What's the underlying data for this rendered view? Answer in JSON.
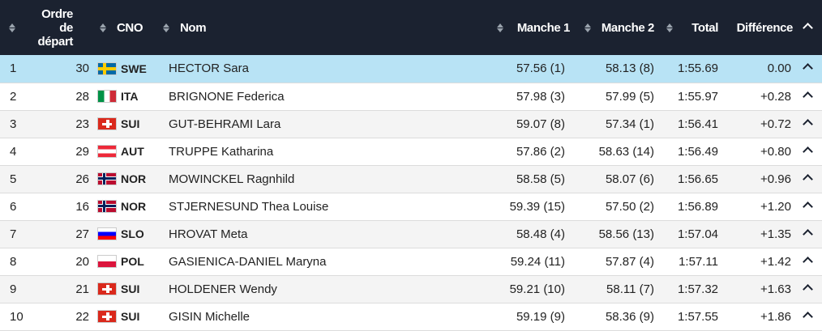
{
  "columns": {
    "ordre_line1": "Ordre",
    "ordre_line2": "de",
    "ordre_line3": "départ",
    "noc": "CNO",
    "name": "Nom",
    "run1": "Manche 1",
    "run2": "Manche 2",
    "total": "Total",
    "diff": "Différence"
  },
  "rows": [
    {
      "rank": "1",
      "bib": "30",
      "noc": "SWE",
      "flag": "sweden-flag-icon",
      "name": "HECTOR Sara",
      "run1": "57.56",
      "run1_rank": "(1)",
      "run2": "58.13",
      "run2_rank": "(8)",
      "total": "1:55.69",
      "diff": "0.00"
    },
    {
      "rank": "2",
      "bib": "28",
      "noc": "ITA",
      "flag": "italy-flag-icon",
      "name": "BRIGNONE Federica",
      "run1": "57.98",
      "run1_rank": "(3)",
      "run2": "57.99",
      "run2_rank": "(5)",
      "total": "1:55.97",
      "diff": "+0.28"
    },
    {
      "rank": "3",
      "bib": "23",
      "noc": "SUI",
      "flag": "switzerland-flag-icon",
      "name": "GUT-BEHRAMI Lara",
      "run1": "59.07",
      "run1_rank": "(8)",
      "run2": "57.34",
      "run2_rank": "(1)",
      "total": "1:56.41",
      "diff": "+0.72"
    },
    {
      "rank": "4",
      "bib": "29",
      "noc": "AUT",
      "flag": "austria-flag-icon",
      "name": "TRUPPE Katharina",
      "run1": "57.86",
      "run1_rank": "(2)",
      "run2": "58.63",
      "run2_rank": "(14)",
      "total": "1:56.49",
      "diff": "+0.80"
    },
    {
      "rank": "5",
      "bib": "26",
      "noc": "NOR",
      "flag": "norway-flag-icon",
      "name": "MOWINCKEL Ragnhild",
      "run1": "58.58",
      "run1_rank": "(5)",
      "run2": "58.07",
      "run2_rank": "(6)",
      "total": "1:56.65",
      "diff": "+0.96"
    },
    {
      "rank": "6",
      "bib": "16",
      "noc": "NOR",
      "flag": "norway-flag-icon",
      "name": "STJERNESUND Thea Louise",
      "run1": "59.39",
      "run1_rank": "(15)",
      "run2": "57.50",
      "run2_rank": "(2)",
      "total": "1:56.89",
      "diff": "+1.20"
    },
    {
      "rank": "7",
      "bib": "27",
      "noc": "SLO",
      "flag": "slovenia-flag-icon",
      "name": "HROVAT Meta",
      "run1": "58.48",
      "run1_rank": "(4)",
      "run2": "58.56",
      "run2_rank": "(13)",
      "total": "1:57.04",
      "diff": "+1.35"
    },
    {
      "rank": "8",
      "bib": "20",
      "noc": "POL",
      "flag": "poland-flag-icon",
      "name": "GASIENICA-DANIEL Maryna",
      "run1": "59.24",
      "run1_rank": "(11)",
      "run2": "57.87",
      "run2_rank": "(4)",
      "total": "1:57.11",
      "diff": "+1.42"
    },
    {
      "rank": "9",
      "bib": "21",
      "noc": "SUI",
      "flag": "switzerland-flag-icon",
      "name": "HOLDENER Wendy",
      "run1": "59.21",
      "run1_rank": "(10)",
      "run2": "58.11",
      "run2_rank": "(7)",
      "total": "1:57.32",
      "diff": "+1.63"
    },
    {
      "rank": "10",
      "bib": "22",
      "noc": "SUI",
      "flag": "switzerland-flag-icon",
      "name": "GISIN Michelle",
      "run1": "59.19",
      "run1_rank": "(9)",
      "run2": "58.36",
      "run2_rank": "(9)",
      "total": "1:57.55",
      "diff": "+1.86"
    }
  ],
  "colors": {
    "header_bg": "#1b2230",
    "highlight_row": "#b8e3f5",
    "stripe_row": "#f4f4f4"
  }
}
